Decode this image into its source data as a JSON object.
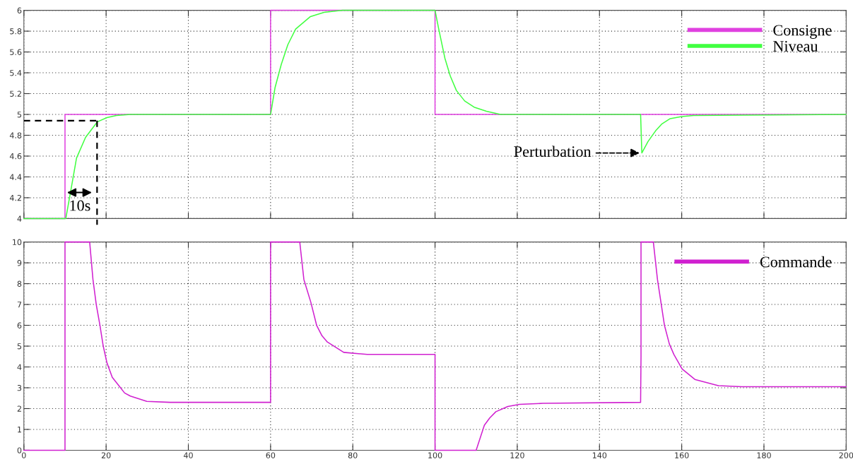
{
  "chart_data": [
    {
      "type": "line",
      "xlim": [
        0,
        200
      ],
      "xticks": [
        0,
        20,
        40,
        60,
        80,
        100,
        120,
        140,
        160,
        180,
        200
      ],
      "ylim": [
        4,
        6
      ],
      "yticks": [
        4,
        {
          "value": 4.2,
          "label": "4.2"
        },
        {
          "value": 4.4,
          "label": "4.4"
        },
        {
          "value": 4.6,
          "label": "4.6"
        },
        {
          "value": 4.8,
          "label": "4.8"
        },
        5,
        {
          "value": 5.2,
          "label": "5.2"
        },
        {
          "value": 5.4,
          "label": "5.4"
        },
        {
          "value": 5.6,
          "label": "5.6"
        },
        {
          "value": 5.8,
          "label": "5.8"
        },
        6
      ],
      "tick_labels": "y",
      "grid": true,
      "legend": "top right",
      "series": [
        {
          "name": "Consigne",
          "color": "#e040e0",
          "x": [
            0,
            10,
            10,
            60,
            60,
            100,
            100,
            200
          ],
          "values": [
            4,
            4,
            5,
            5,
            6,
            6,
            5,
            5
          ]
        },
        {
          "name": "Niveau",
          "color": "#40ff40",
          "x": [
            0,
            10,
            10.2,
            11.1,
            11.6,
            12.8,
            15,
            17.9,
            20.2,
            22.5,
            25.9,
            60,
            61.1,
            62.6,
            64.2,
            66.1,
            69.7,
            73,
            77.5,
            100,
            100.9,
            102.4,
            103.7,
            105.2,
            107.2,
            109.5,
            112.5,
            115.9,
            150,
            150.3,
            151.8,
            153.6,
            155.2,
            157.2,
            160,
            162.9,
            200
          ],
          "values": [
            4,
            4,
            4.0,
            4.2,
            4.31,
            4.58,
            4.78,
            4.93,
            4.97,
            4.99,
            5.0,
            5.0,
            5.26,
            5.48,
            5.67,
            5.82,
            5.94,
            5.98,
            6.0,
            6.0,
            5.82,
            5.54,
            5.37,
            5.23,
            5.13,
            5.07,
            5.03,
            5.0,
            5.0,
            4.63,
            4.74,
            4.84,
            4.91,
            4.96,
            4.98,
            4.99,
            5.0
          ]
        }
      ],
      "annotations": [
        {
          "text": "10s",
          "x": 17.8,
          "y": 4.94
        },
        {
          "text": "Perturbation",
          "x": 150,
          "y": 4.63
        }
      ]
    },
    {
      "type": "line",
      "xlim": [
        0,
        200
      ],
      "xticks": [
        0,
        20,
        40,
        60,
        80,
        100,
        120,
        140,
        160,
        180,
        200
      ],
      "ylim": [
        0,
        10
      ],
      "yticks": [
        0,
        1,
        2,
        3,
        4,
        5,
        6,
        7,
        8,
        9,
        10
      ],
      "grid": true,
      "legend": "top right",
      "series": [
        {
          "name": "Commande",
          "color": "#d020d0",
          "x": [
            0,
            10,
            10,
            16,
            16.8,
            17.6,
            18.5,
            19.3,
            20.2,
            21.5,
            23.1,
            24.5,
            25.9,
            29.9,
            35.6,
            60,
            60,
            67.1,
            68.1,
            69.8,
            71.2,
            72.5,
            73.8,
            77.8,
            83.5,
            100,
            100,
            110,
            111,
            112,
            113.3,
            114.8,
            117.7,
            120.5,
            126.2,
            150,
            150.1,
            150.1,
            153.1,
            154.1,
            155.8,
            157,
            158.1,
            160.1,
            163.2,
            168.9,
            174.6,
            200
          ],
          "values": [
            0,
            0,
            10,
            10,
            8.2,
            7.0,
            6.0,
            5.0,
            4.2,
            3.5,
            3.1,
            2.75,
            2.6,
            2.35,
            2.3,
            2.3,
            10,
            10,
            8.2,
            7.1,
            6.0,
            5.5,
            5.2,
            4.7,
            4.6,
            4.6,
            0,
            0,
            0.6,
            1.2,
            1.55,
            1.85,
            2.1,
            2.2,
            2.25,
            2.3,
            4.5,
            10,
            10,
            8.2,
            6.0,
            5.1,
            4.6,
            3.9,
            3.4,
            3.1,
            3.05,
            3.05
          ]
        }
      ]
    }
  ]
}
